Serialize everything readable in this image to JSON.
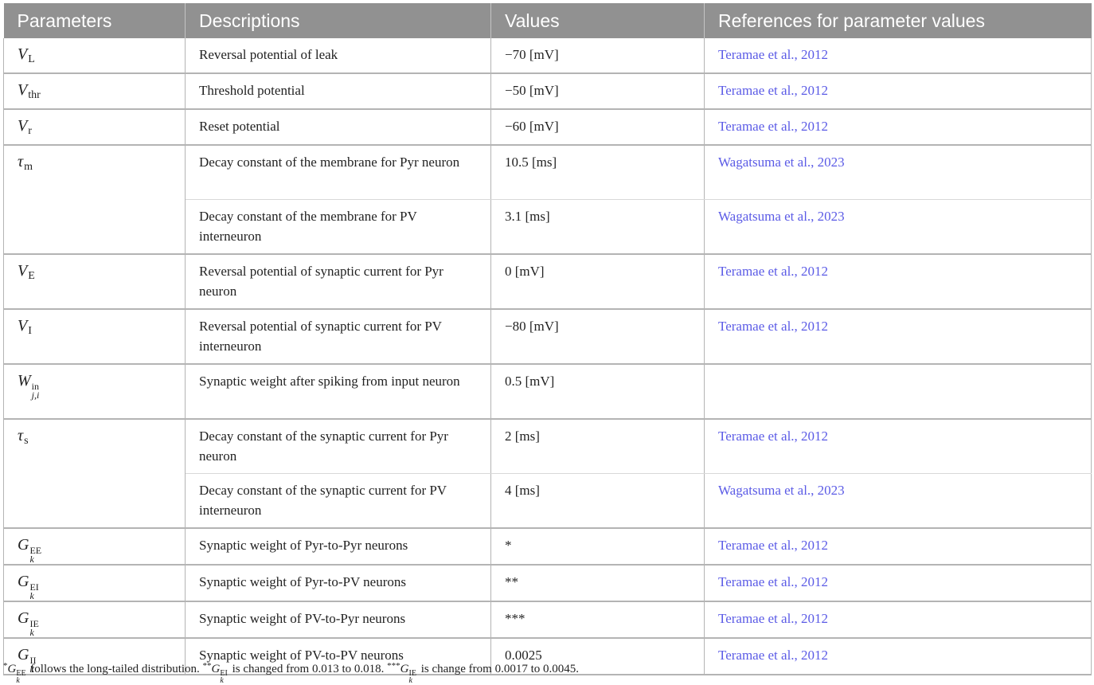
{
  "headers": [
    "Parameters",
    "Descriptions",
    "Values",
    "References for parameter values"
  ],
  "rows": [
    {
      "symbol": "V",
      "sub": "L",
      "description": "Reversal potential of leak",
      "value": "−70 [mV]",
      "reference": "Teramae et al., 2012"
    },
    {
      "symbol": "V",
      "sub": "thr",
      "description": "Threshold potential",
      "value": "−50 [mV]",
      "reference": "Teramae et al., 2012"
    },
    {
      "symbol": "V",
      "sub": "r",
      "description": "Reset potential",
      "value": "−60 [mV]",
      "reference": "Teramae et al., 2012"
    },
    {
      "symbol": "τ",
      "sub": "m",
      "description": "Decay constant of the membrane for Pyr neuron",
      "value": "10.5 [ms]",
      "reference": "Wagatsuma et al., 2023"
    },
    {
      "description": "Decay constant of the membrane for PV interneuron",
      "value": "3.1 [ms]",
      "reference": "Wagatsuma et al., 2023"
    },
    {
      "symbol": "V",
      "sub": "E",
      "description": "Reversal potential of synaptic current for Pyr neuron",
      "value": "0 [mV]",
      "reference": "Teramae et al., 2012"
    },
    {
      "symbol": "V",
      "sub": "I",
      "description": "Reversal potential of synaptic current for PV interneuron",
      "value": "−80 [mV]",
      "reference": "Teramae et al., 2012"
    },
    {
      "symbol": "W",
      "sup": "in",
      "subscript": "j,i",
      "description": "Synaptic weight after spiking from input neuron",
      "value": "0.5 [mV]",
      "reference": ""
    },
    {
      "symbol": "τ",
      "sub": "s",
      "description": "Decay constant of the synaptic current for Pyr neuron",
      "value": "2 [ms]",
      "reference": "Teramae et al., 2012"
    },
    {
      "description": "Decay constant of the synaptic current for PV interneuron",
      "value": "4 [ms]",
      "reference": "Wagatsuma et al., 2023"
    },
    {
      "symbol": "G",
      "sup": "EE",
      "subscript": "k",
      "description": "Synaptic weight of Pyr-to-Pyr neurons",
      "value": "*",
      "reference": "Teramae et al., 2012"
    },
    {
      "symbol": "G",
      "sup": "EI",
      "subscript": "k",
      "description": "Synaptic weight of Pyr-to-PV neurons",
      "value": "**",
      "reference": "Teramae et al., 2012"
    },
    {
      "symbol": "G",
      "sup": "IE",
      "subscript": "k",
      "description": "Synaptic weight of PV-to-Pyr neurons",
      "value": "***",
      "reference": "Teramae et al., 2012"
    },
    {
      "symbol": "G",
      "sup": "II",
      "subscript": "k",
      "description": "Synaptic weight of PV-to-PV neurons",
      "value": "0.0025",
      "reference": "Teramae et al., 2012"
    }
  ],
  "footnote": {
    "mark1": "*",
    "sym1": "G",
    "sup1": "EE",
    "sub1": "k",
    "text1": " follows the long-tailed distribution. ",
    "mark2": "**",
    "sym2": "G",
    "sup2": "EI",
    "sub2": "k",
    "text2": " is changed from 0.013 to 0.018. ",
    "mark3": "***",
    "sym3": "G",
    "sup3": "IE",
    "sub3": "k",
    "text3": " is change from 0.0017 to 0.0045."
  }
}
